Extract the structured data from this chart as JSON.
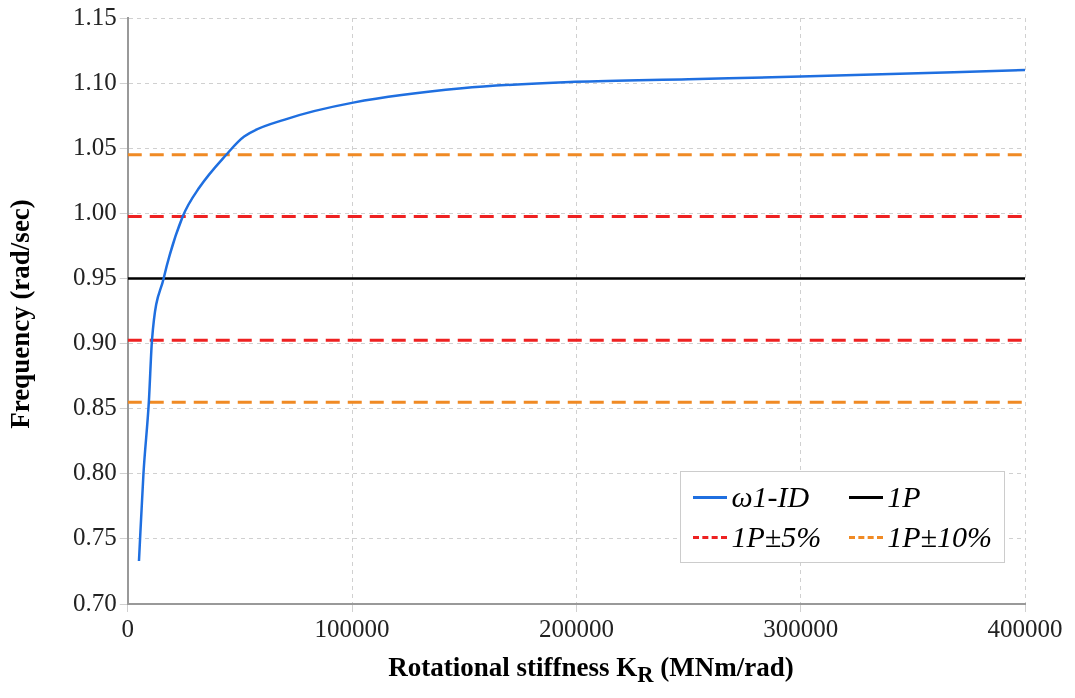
{
  "chart_data": {
    "type": "line",
    "xlabel": "Rotational stiffness K$_{R}$ (MNm/rad)",
    "ylabel": "Frequency (rad/sec)",
    "xlim": [
      0,
      400000
    ],
    "xticks": [
      0,
      100000,
      200000,
      300000,
      400000
    ],
    "ylim": [
      0.7,
      1.15
    ],
    "yticks": [
      {
        "value": 0.7,
        "label": "0.70"
      },
      0.75,
      {
        "value": 0.8,
        "label": "0.80"
      },
      0.85,
      {
        "value": 0.9,
        "label": "0.90"
      },
      0.95,
      {
        "value": 1.0,
        "label": "1.00"
      },
      1.05,
      {
        "value": 1.1,
        "label": "1.10"
      },
      1.15
    ],
    "grid": true,
    "legend": "bottom right",
    "marker": "none",
    "series": [
      {
        "name": "ω1-ID",
        "color": "#1f6fe0",
        "line_style": "solid",
        "x": [
          5000,
          7000,
          9400,
          10800,
          16000,
          24500,
          32000,
          43900,
          51900,
          70000,
          100500,
          149000,
          199500,
          250000,
          300000,
          400000
        ],
        "values": [
          0.733,
          0.8,
          0.855,
          0.9025,
          0.95,
          0.9975,
          1.02,
          1.045,
          1.059,
          1.072,
          1.085,
          1.096,
          1.101,
          1.103,
          1.105,
          1.11
        ]
      },
      {
        "name": "1P",
        "color": "#000000",
        "line_style": "solid",
        "x": [
          0,
          400000
        ],
        "values": [
          0.95,
          0.95
        ]
      },
      {
        "name": "1P±5%",
        "color": "#ee2222",
        "line_style": "dashed",
        "x": [
          0,
          400000
        ],
        "values": [
          0.9975,
          0.9975
        ]
      },
      {
        "color": "#ee2222",
        "line_style": "dashed",
        "x": [
          0,
          400000
        ],
        "values": [
          0.9025,
          0.9025
        ]
      },
      {
        "name": "1P±10%",
        "color": "#f08a24",
        "line_style": "dashed",
        "x": [
          0,
          400000
        ],
        "values": [
          1.045,
          1.045
        ]
      },
      {
        "color": "#f08a24",
        "line_style": "dashed",
        "x": [
          0,
          400000
        ],
        "values": [
          0.855,
          0.855
        ]
      }
    ]
  }
}
